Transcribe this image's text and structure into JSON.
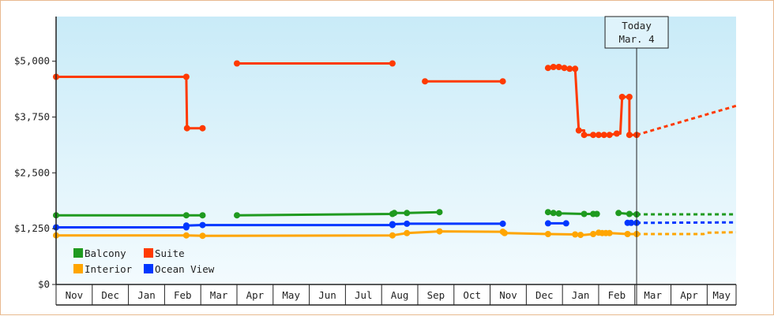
{
  "chart_data": {
    "type": "line",
    "title": "",
    "xlabel": "",
    "ylabel": "",
    "ylim": [
      0,
      6000
    ],
    "y_ticks": [
      {
        "value": 0,
        "label": "$0"
      },
      {
        "value": 1250,
        "label": "$1,250"
      },
      {
        "value": 2500,
        "label": "$2,500"
      },
      {
        "value": 3750,
        "label": "$3,750"
      },
      {
        "value": 5000,
        "label": "$5,000"
      }
    ],
    "x_months": [
      "Nov",
      "Dec",
      "Jan",
      "Feb",
      "Mar",
      "Apr",
      "May",
      "Jun",
      "Jul",
      "Aug",
      "Sep",
      "Oct",
      "Nov",
      "Dec",
      "Jan",
      "Feb",
      "Mar",
      "Apr",
      "May"
    ],
    "x_unit": "month index (0 = start of Nov)",
    "xlim": [
      0,
      18.8
    ],
    "today": {
      "line1": "Today",
      "line2": "Mar. 4",
      "x": 16.05
    },
    "grid": false,
    "legend_position": "bottom-left",
    "series": [
      {
        "name": "Suite",
        "color": "#ff3a00",
        "segments": [
          [
            [
              0.0,
              4650
            ],
            [
              3.6,
              4650
            ],
            [
              3.62,
              3500
            ],
            [
              4.05,
              3500
            ]
          ],
          [
            [
              5.0,
              4950
            ],
            [
              9.3,
              4950
            ]
          ],
          [
            [
              10.2,
              4550
            ],
            [
              12.35,
              4550
            ]
          ],
          [
            [
              13.6,
              4850
            ],
            [
              13.75,
              4870
            ],
            [
              13.9,
              4870
            ],
            [
              14.05,
              4850
            ],
            [
              14.2,
              4830
            ],
            [
              14.35,
              4830
            ],
            [
              14.45,
              3450
            ],
            [
              14.6,
              3450
            ],
            [
              14.6,
              3350
            ],
            [
              14.85,
              3350
            ],
            [
              15.0,
              3350
            ],
            [
              15.15,
              3350
            ],
            [
              15.3,
              3350
            ],
            [
              15.5,
              3380
            ],
            [
              15.6,
              3380
            ],
            [
              15.65,
              4200
            ],
            [
              15.85,
              4200
            ],
            [
              15.85,
              3350
            ],
            [
              16.05,
              3350
            ]
          ]
        ],
        "markers": [
          [
            0.0,
            4650
          ],
          [
            3.6,
            4650
          ],
          [
            3.62,
            3500
          ],
          [
            4.05,
            3500
          ],
          [
            5.0,
            4950
          ],
          [
            9.3,
            4950
          ],
          [
            10.2,
            4550
          ],
          [
            12.35,
            4550
          ],
          [
            13.6,
            4850
          ],
          [
            13.75,
            4870
          ],
          [
            13.9,
            4870
          ],
          [
            14.05,
            4850
          ],
          [
            14.2,
            4830
          ],
          [
            14.35,
            4830
          ],
          [
            14.45,
            3450
          ],
          [
            14.6,
            3350
          ],
          [
            14.85,
            3350
          ],
          [
            15.0,
            3350
          ],
          [
            15.15,
            3350
          ],
          [
            15.3,
            3350
          ],
          [
            15.5,
            3380
          ],
          [
            15.65,
            4200
          ],
          [
            15.85,
            4200
          ],
          [
            15.85,
            3350
          ],
          [
            16.05,
            3350
          ]
        ],
        "forecast": [
          [
            16.05,
            3350
          ],
          [
            18.8,
            4000
          ]
        ]
      },
      {
        "name": "Balcony",
        "color": "#1f9a1f",
        "segments": [
          [
            [
              0.0,
              1550
            ],
            [
              3.6,
              1550
            ],
            [
              4.05,
              1550
            ]
          ],
          [
            [
              5.0,
              1550
            ],
            [
              9.3,
              1580
            ],
            [
              9.35,
              1600
            ],
            [
              9.7,
              1600
            ],
            [
              10.6,
              1620
            ]
          ],
          [
            [
              13.6,
              1620
            ],
            [
              13.75,
              1600
            ],
            [
              13.9,
              1590
            ],
            [
              14.05,
              1590
            ],
            [
              14.6,
              1580
            ],
            [
              14.85,
              1580
            ],
            [
              14.95,
              1580
            ]
          ],
          [
            [
              15.55,
              1600
            ],
            [
              15.85,
              1580
            ],
            [
              16.05,
              1570
            ]
          ]
        ],
        "markers": [
          [
            0.0,
            1550
          ],
          [
            3.6,
            1550
          ],
          [
            4.05,
            1550
          ],
          [
            5.0,
            1550
          ],
          [
            9.3,
            1580
          ],
          [
            9.35,
            1600
          ],
          [
            9.7,
            1600
          ],
          [
            10.6,
            1620
          ],
          [
            13.6,
            1620
          ],
          [
            13.75,
            1600
          ],
          [
            13.9,
            1590
          ],
          [
            14.6,
            1580
          ],
          [
            14.85,
            1580
          ],
          [
            14.95,
            1580
          ],
          [
            15.55,
            1600
          ],
          [
            15.85,
            1580
          ],
          [
            16.05,
            1570
          ]
        ],
        "forecast": [
          [
            16.05,
            1570
          ],
          [
            18.8,
            1570
          ]
        ]
      },
      {
        "name": "Ocean View",
        "color": "#0037ff",
        "segments": [
          [
            [
              0.0,
              1280
            ],
            [
              3.6,
              1280
            ],
            [
              3.6,
              1320
            ],
            [
              4.05,
              1330
            ]
          ],
          [
            [
              4.05,
              1330
            ],
            [
              9.3,
              1330
            ],
            [
              9.3,
              1350
            ],
            [
              9.7,
              1360
            ],
            [
              12.35,
              1360
            ]
          ],
          [
            [
              13.6,
              1370
            ],
            [
              14.1,
              1370
            ]
          ],
          [
            [
              15.8,
              1380
            ],
            [
              16.05,
              1380
            ]
          ]
        ],
        "markers": [
          [
            0.0,
            1280
          ],
          [
            3.6,
            1280
          ],
          [
            3.6,
            1320
          ],
          [
            4.05,
            1330
          ],
          [
            9.3,
            1330
          ],
          [
            9.3,
            1350
          ],
          [
            9.7,
            1360
          ],
          [
            12.35,
            1360
          ],
          [
            13.6,
            1370
          ],
          [
            14.1,
            1370
          ],
          [
            15.8,
            1380
          ],
          [
            15.9,
            1380
          ],
          [
            16.05,
            1380
          ]
        ],
        "forecast": [
          [
            16.05,
            1380
          ],
          [
            18.8,
            1390
          ]
        ]
      },
      {
        "name": "Interior",
        "color": "#ffa500",
        "segments": [
          [
            [
              0.0,
              1100
            ],
            [
              3.6,
              1100
            ],
            [
              4.05,
              1090
            ],
            [
              9.3,
              1100
            ],
            [
              9.7,
              1150
            ],
            [
              10.6,
              1190
            ],
            [
              12.35,
              1180
            ],
            [
              12.4,
              1150
            ],
            [
              13.6,
              1130
            ],
            [
              14.35,
              1120
            ],
            [
              14.6,
              1110
            ],
            [
              14.85,
              1130
            ],
            [
              15.0,
              1160
            ],
            [
              15.15,
              1150
            ],
            [
              15.3,
              1150
            ],
            [
              15.8,
              1130
            ],
            [
              16.05,
              1130
            ]
          ]
        ],
        "markers": [
          [
            0.0,
            1100
          ],
          [
            3.6,
            1100
          ],
          [
            4.05,
            1090
          ],
          [
            9.3,
            1100
          ],
          [
            9.7,
            1150
          ],
          [
            10.6,
            1190
          ],
          [
            12.35,
            1180
          ],
          [
            12.4,
            1150
          ],
          [
            13.6,
            1130
          ],
          [
            14.35,
            1120
          ],
          [
            14.5,
            1110
          ],
          [
            14.85,
            1130
          ],
          [
            15.0,
            1160
          ],
          [
            15.1,
            1150
          ],
          [
            15.2,
            1150
          ],
          [
            15.3,
            1150
          ],
          [
            15.8,
            1130
          ],
          [
            16.05,
            1130
          ]
        ],
        "forecast": [
          [
            16.05,
            1130
          ],
          [
            17.9,
            1130
          ],
          [
            18.0,
            1160
          ],
          [
            18.8,
            1170
          ]
        ]
      }
    ],
    "legend": [
      {
        "name": "Balcony",
        "color": "#1f9a1f"
      },
      {
        "name": "Suite",
        "color": "#ff3a00"
      },
      {
        "name": "Interior",
        "color": "#ffa500"
      },
      {
        "name": "Ocean View",
        "color": "#0037ff"
      }
    ]
  }
}
